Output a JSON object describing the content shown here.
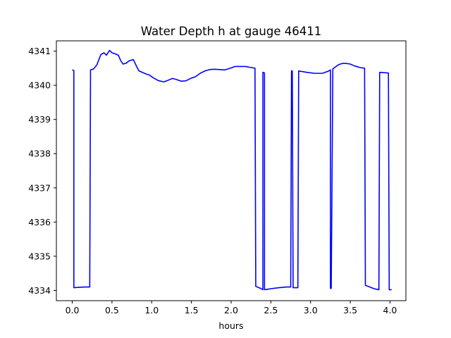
{
  "chart_data": {
    "type": "line",
    "title": "Water Depth h at gauge 46411",
    "xlabel": "hours",
    "ylabel": "",
    "xlim": [
      -0.2,
      4.2
    ],
    "ylim": [
      4333.7,
      4341.3
    ],
    "xticks": [
      0.0,
      0.5,
      1.0,
      1.5,
      2.0,
      2.5,
      3.0,
      3.5,
      4.0
    ],
    "xtick_labels": [
      "0.0",
      "0.5",
      "1.0",
      "1.5",
      "2.0",
      "2.5",
      "3.0",
      "3.5",
      "4.0"
    ],
    "yticks": [
      4334,
      4335,
      4336,
      4337,
      4338,
      4339,
      4340,
      4341
    ],
    "ytick_labels": [
      "4334",
      "4335",
      "4336",
      "4337",
      "4338",
      "4339",
      "4340",
      "4341"
    ],
    "grid": false,
    "legend": "none",
    "series": [
      {
        "color": "#0000ff",
        "x": [
          0.0,
          0.02,
          0.02,
          0.08,
          0.16,
          0.22,
          0.23,
          0.27,
          0.31,
          0.36,
          0.4,
          0.43,
          0.47,
          0.5,
          0.53,
          0.58,
          0.61,
          0.64,
          0.68,
          0.72,
          0.77,
          0.81,
          0.84,
          0.88,
          0.93,
          0.97,
          1.02,
          1.08,
          1.15,
          1.2,
          1.26,
          1.31,
          1.37,
          1.43,
          1.49,
          1.55,
          1.61,
          1.67,
          1.73,
          1.79,
          1.86,
          1.92,
          1.99,
          2.05,
          2.11,
          2.18,
          2.25,
          2.3,
          2.31,
          2.38,
          2.4,
          2.4,
          2.42,
          2.42,
          2.5,
          2.6,
          2.7,
          2.75,
          2.76,
          2.77,
          2.78,
          2.79,
          2.84,
          2.85,
          2.95,
          3.05,
          3.15,
          3.23,
          3.25,
          3.25,
          3.26,
          3.28,
          3.35,
          3.4,
          3.45,
          3.5,
          3.55,
          3.62,
          3.68,
          3.69,
          3.8,
          3.86,
          3.87,
          3.98,
          3.99,
          4.02
        ],
        "y": [
          4340.45,
          4340.43,
          4334.08,
          4334.09,
          4334.1,
          4334.1,
          4340.45,
          4340.48,
          4340.6,
          4340.9,
          4340.95,
          4340.88,
          4341.02,
          4340.95,
          4340.93,
          4340.88,
          4340.72,
          4340.62,
          4340.65,
          4340.72,
          4340.75,
          4340.55,
          4340.42,
          4340.38,
          4340.33,
          4340.3,
          4340.22,
          4340.14,
          4340.1,
          4340.14,
          4340.2,
          4340.17,
          4340.12,
          4340.13,
          4340.2,
          4340.25,
          4340.35,
          4340.42,
          4340.46,
          4340.47,
          4340.46,
          4340.45,
          4340.5,
          4340.55,
          4340.55,
          4340.55,
          4340.52,
          4340.5,
          4334.12,
          4334.05,
          4334.02,
          4340.38,
          4340.36,
          4334.02,
          4334.05,
          4334.08,
          4334.1,
          4334.1,
          4340.42,
          4340.42,
          4334.08,
          4334.08,
          4334.08,
          4340.42,
          4340.38,
          4340.35,
          4340.35,
          4340.42,
          4340.45,
          4334.06,
          4334.06,
          4340.48,
          4340.6,
          4340.64,
          4340.64,
          4340.62,
          4340.57,
          4340.52,
          4340.5,
          4334.15,
          4334.05,
          4334.02,
          4340.38,
          4340.36,
          4334.02,
          4334.02
        ]
      }
    ]
  }
}
